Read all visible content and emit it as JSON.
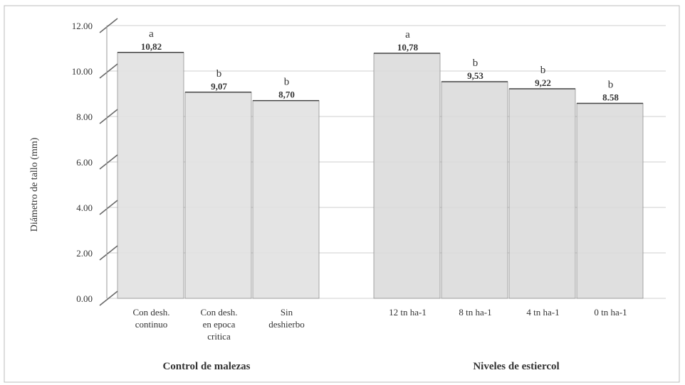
{
  "chart_data": {
    "type": "bar",
    "ylabel": "Diámetro de tallo (mm)",
    "ylim": [
      0,
      12
    ],
    "yticks": [
      "0.00",
      "2.00",
      "4.00",
      "6.00",
      "8.00",
      "10.00",
      "12.00"
    ],
    "groups": [
      {
        "label": "Control de malezas",
        "categories": [
          {
            "label": [
              "Con desh.",
              "continuo"
            ],
            "value": 10.82,
            "value_label": "10,82",
            "letter": "a"
          },
          {
            "label": [
              "Con desh.",
              "en epoca",
              "critica"
            ],
            "value": 9.07,
            "value_label": "9,07",
            "letter": "b"
          },
          {
            "label": [
              "Sin",
              "deshierbo"
            ],
            "value": 8.7,
            "value_label": "8,70",
            "letter": "b"
          }
        ]
      },
      {
        "label": "Niveles de estiercol",
        "categories": [
          {
            "label": [
              "12 tn ha-1"
            ],
            "value": 10.78,
            "value_label": "10,78",
            "letter": "a"
          },
          {
            "label": [
              "8 tn ha-1"
            ],
            "value": 9.53,
            "value_label": "9,53",
            "letter": "b"
          },
          {
            "label": [
              "4 tn ha-1"
            ],
            "value": 9.22,
            "value_label": "9,22",
            "letter": "b"
          },
          {
            "label": [
              "0 tn ha-1"
            ],
            "value": 8.58,
            "value_label": "8.58",
            "letter": "b"
          }
        ]
      }
    ]
  }
}
